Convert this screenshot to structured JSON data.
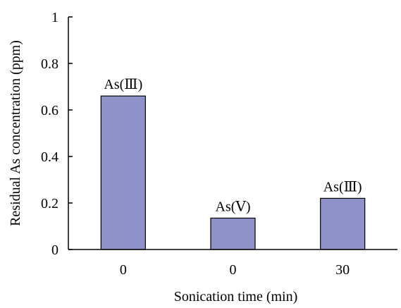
{
  "chart_data": {
    "type": "bar",
    "categories": [
      "0",
      "0",
      "30"
    ],
    "values": [
      0.66,
      0.135,
      0.22
    ],
    "bar_labels": [
      "As(Ⅲ)",
      "As(Ⅴ)",
      "As(Ⅲ)"
    ],
    "xlabel": "Sonication time (min)",
    "ylabel": "Residual As concentration (ppm)",
    "ylim": [
      0,
      1
    ],
    "yticks": [
      "0",
      "0.2",
      "0.4",
      "0.6",
      "0.8",
      "1"
    ],
    "grid": false,
    "bar_color": "#8e92c8"
  }
}
